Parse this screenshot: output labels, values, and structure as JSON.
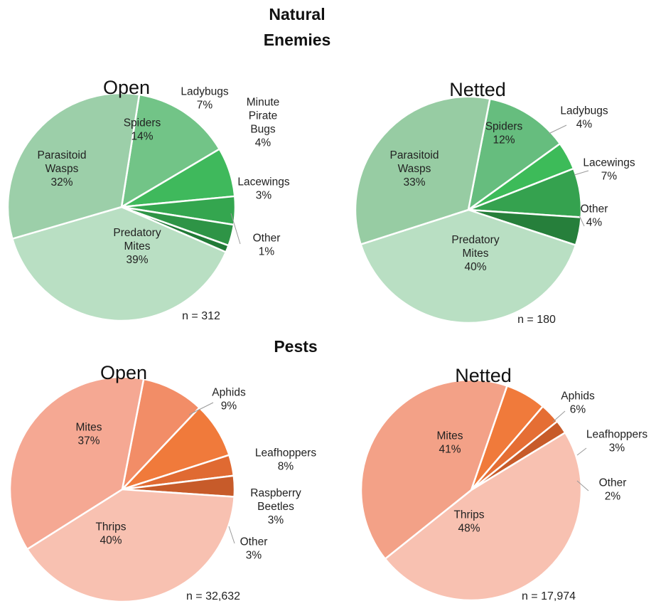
{
  "sections": {
    "natural_enemies_title_line1": "Natural",
    "natural_enemies_title_line2": "Enemies",
    "pests_title": "Pests"
  },
  "chart_data": [
    {
      "type": "pie",
      "group": "Natural Enemies",
      "title": "Open",
      "n_label": "n = 312",
      "slices": [
        {
          "name": "Spiders",
          "value": 14,
          "label": [
            "Spiders",
            "14%"
          ],
          "color": "#72c487"
        },
        {
          "name": "Ladybugs",
          "value": 7,
          "label": [
            "Ladybugs",
            "7%"
          ],
          "color": "#3fb95c"
        },
        {
          "name": "Minute Pirate Bugs",
          "value": 4,
          "label": [
            "Minute",
            "Pirate",
            "Bugs",
            "4%"
          ],
          "color": "#34a64f"
        },
        {
          "name": "Lacewings",
          "value": 3,
          "label": [
            "Lacewings",
            "3%"
          ],
          "color": "#2e9446"
        },
        {
          "name": "Other",
          "value": 1,
          "label": [
            "Other",
            "1%"
          ],
          "color": "#217a37"
        },
        {
          "name": "Predatory Mites",
          "value": 39,
          "label": [
            "Predatory",
            "Mites",
            "39%"
          ],
          "color": "#b9dfc3"
        },
        {
          "name": "Parasitoid Wasps",
          "value": 32,
          "label": [
            "Parasitoid",
            "Wasps",
            "32%"
          ],
          "color": "#9ccfa9"
        }
      ]
    },
    {
      "type": "pie",
      "group": "Natural Enemies",
      "title": "Netted",
      "n_label": "n = 180",
      "slices": [
        {
          "name": "Spiders",
          "value": 12,
          "label": [
            "Spiders",
            "12%"
          ],
          "color": "#66bd7e"
        },
        {
          "name": "Ladybugs",
          "value": 4,
          "label": [
            "Ladybugs",
            "4%"
          ],
          "color": "#3dbb59"
        },
        {
          "name": "Lacewings",
          "value": 7,
          "label": [
            "Lacewings",
            "7%"
          ],
          "color": "#35a24f"
        },
        {
          "name": "Other",
          "value": 4,
          "label": [
            "Other",
            "4%"
          ],
          "color": "#267f3b"
        },
        {
          "name": "Predatory Mites",
          "value": 40,
          "label": [
            "Predatory",
            "Mites",
            "40%"
          ],
          "color": "#b9dfc3"
        },
        {
          "name": "Parasitoid Wasps",
          "value": 33,
          "label": [
            "Parasitoid",
            "Wasps",
            "33%"
          ],
          "color": "#97cca3"
        }
      ]
    },
    {
      "type": "pie",
      "group": "Pests",
      "title": "Open",
      "n_label": "n = 32,632",
      "slices": [
        {
          "name": "Aphids",
          "value": 9,
          "label": [
            "Aphids",
            "9%"
          ],
          "color": "#f28d67"
        },
        {
          "name": "Leafhoppers",
          "value": 8,
          "label": [
            "Leafhoppers",
            "8%"
          ],
          "color": "#f07a3b"
        },
        {
          "name": "Raspberry Beetles",
          "value": 3,
          "label": [
            "Raspberry",
            "Beetles",
            "3%"
          ],
          "color": "#e06a32"
        },
        {
          "name": "Other",
          "value": 3,
          "label": [
            "Other",
            "3%"
          ],
          "color": "#c75b2a"
        },
        {
          "name": "Thrips",
          "value": 40,
          "label": [
            "Thrips",
            "40%"
          ],
          "color": "#f8c1b1"
        },
        {
          "name": "Mites",
          "value": 37,
          "label": [
            "Mites",
            "37%"
          ],
          "color": "#f5a893"
        }
      ]
    },
    {
      "type": "pie",
      "group": "Pests",
      "title": "Netted",
      "n_label": "n = 17,974",
      "slices": [
        {
          "name": "Aphids",
          "value": 6,
          "label": [
            "Aphids",
            "6%"
          ],
          "color": "#f07a3b"
        },
        {
          "name": "Leafhoppers",
          "value": 3,
          "label": [
            "Leafhoppers",
            "3%"
          ],
          "color": "#e56e34"
        },
        {
          "name": "Other",
          "value": 2,
          "label": [
            "Other",
            "2%"
          ],
          "color": "#c75b2a"
        },
        {
          "name": "Thrips",
          "value": 48,
          "label": [
            "Thrips",
            "48%"
          ],
          "color": "#f8c1b1"
        },
        {
          "name": "Mites",
          "value": 41,
          "label": [
            "Mites",
            "41%"
          ],
          "color": "#f3a187"
        }
      ]
    }
  ]
}
